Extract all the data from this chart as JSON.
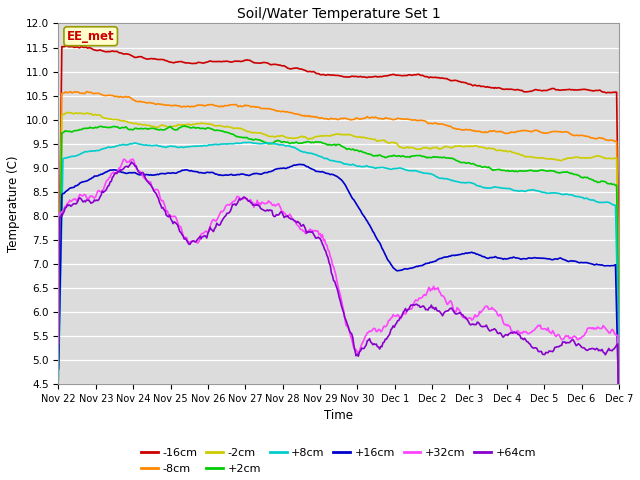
{
  "title": "Soil/Water Temperature Set 1",
  "xlabel": "Time",
  "ylabel": "Temperature (C)",
  "ylim": [
    4.5,
    12.0
  ],
  "yticks": [
    4.5,
    5.0,
    5.5,
    6.0,
    6.5,
    7.0,
    7.5,
    8.0,
    8.5,
    9.0,
    9.5,
    10.0,
    10.5,
    11.0,
    11.5,
    12.0
  ],
  "fig_bg_color": "#ffffff",
  "plot_bg_color": "#dcdcdc",
  "annotation_text": "EE_met",
  "annotation_bg": "#ffffcc",
  "annotation_border": "#999900",
  "series": {
    "-16cm": {
      "color": "#cc0000",
      "lw": 1.2
    },
    "-8cm": {
      "color": "#ff8800",
      "lw": 1.2
    },
    "-2cm": {
      "color": "#cccc00",
      "lw": 1.2
    },
    "+2cm": {
      "color": "#00cc00",
      "lw": 1.2
    },
    "+8cm": {
      "color": "#00cccc",
      "lw": 1.2
    },
    "+16cm": {
      "color": "#0000cc",
      "lw": 1.2
    },
    "+32cm": {
      "color": "#ff44ff",
      "lw": 1.2
    },
    "+64cm": {
      "color": "#8800cc",
      "lw": 1.2
    }
  },
  "xtick_labels": [
    "Nov 22",
    "Nov 23",
    "Nov 24",
    "Nov 25",
    "Nov 26",
    "Nov 27",
    "Nov 28",
    "Nov 29",
    "Nov 30",
    "Dec 1",
    "Dec 2",
    "Dec 3",
    "Dec 4",
    "Dec 5",
    "Dec 6",
    "Dec 7"
  ],
  "n_points": 500
}
